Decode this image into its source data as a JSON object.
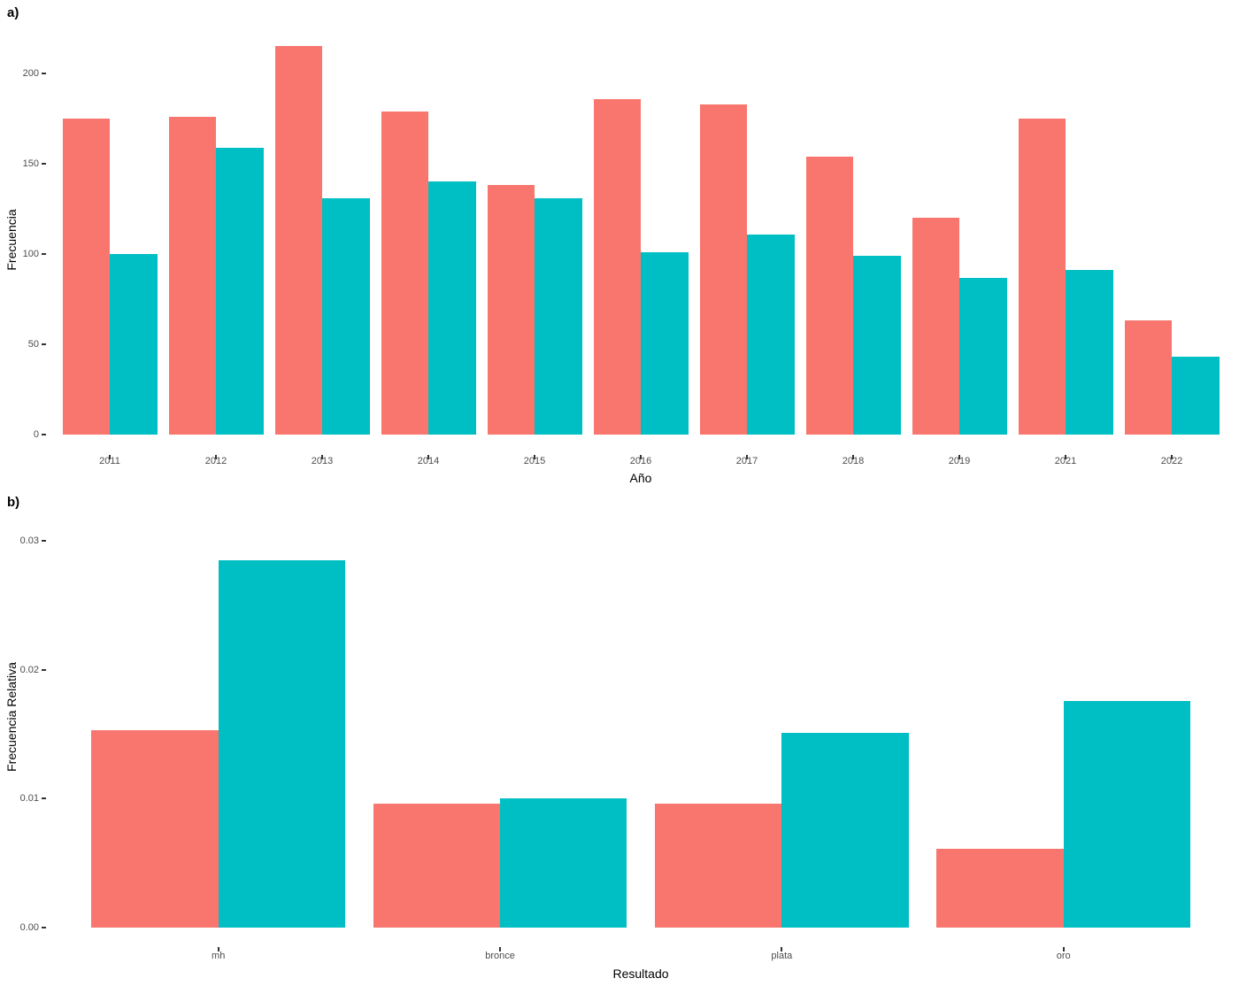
{
  "figure": {
    "background": "#ffffff",
    "tick_color": "#333333",
    "tick_label_color": "#4d4d4d",
    "axis_title_color": "#000000"
  },
  "colors": {
    "series_red": "#F8766D",
    "series_teal": "#00BFC4"
  },
  "chart_data": [
    {
      "type": "bar",
      "panel_tag": "a)",
      "title": "",
      "xlabel": "Año",
      "ylabel": "Frecuencia",
      "categories": [
        "2011",
        "2012",
        "2013",
        "2014",
        "2015",
        "2016",
        "2017",
        "2018",
        "2019",
        "2021",
        "2022"
      ],
      "series": [
        {
          "name": "series_red",
          "color": "#F8766D",
          "values": [
            175,
            176,
            215,
            179,
            138,
            186,
            183,
            154,
            120,
            175,
            63
          ]
        },
        {
          "name": "series_teal",
          "color": "#00BFC4",
          "values": [
            100,
            159,
            131,
            140,
            131,
            101,
            111,
            99,
            87,
            91,
            43
          ]
        }
      ],
      "y_ticks": [
        {
          "value": 0,
          "label": "0"
        },
        {
          "value": 50,
          "label": "50"
        },
        {
          "value": 100,
          "label": "100"
        },
        {
          "value": 150,
          "label": "150"
        },
        {
          "value": 200,
          "label": "200"
        }
      ],
      "ylim": [
        0,
        225
      ],
      "grid": false,
      "legend": "none",
      "bar_layout": "dodged"
    },
    {
      "type": "bar",
      "panel_tag": "b)",
      "title": "",
      "xlabel": "Resultado",
      "ylabel": "Frecuencia Relativa",
      "categories": [
        "mh",
        "bronce",
        "plata",
        "oro"
      ],
      "series": [
        {
          "name": "series_red",
          "color": "#F8766D",
          "values": [
            0.0153,
            0.0096,
            0.0096,
            0.0061
          ]
        },
        {
          "name": "series_teal",
          "color": "#00BFC4",
          "values": [
            0.0285,
            0.01,
            0.0151,
            0.0176
          ]
        }
      ],
      "y_ticks": [
        {
          "value": 0.0,
          "label": "0.00"
        },
        {
          "value": 0.01,
          "label": "0.01"
        },
        {
          "value": 0.02,
          "label": "0.02"
        },
        {
          "value": 0.03,
          "label": "0.03"
        }
      ],
      "ylim": [
        0,
        0.0307
      ],
      "grid": false,
      "legend": "none",
      "bar_layout": "dodged"
    }
  ]
}
